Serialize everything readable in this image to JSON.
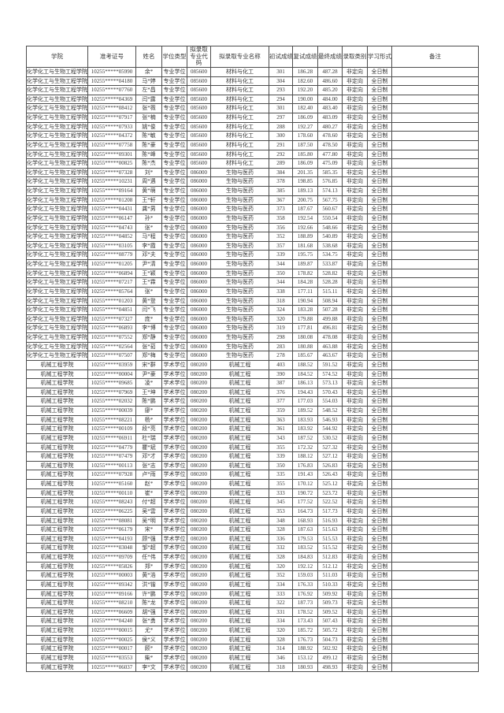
{
  "table": {
    "columns": [
      {
        "name": "college",
        "label": "学院"
      },
      {
        "name": "candidate-id",
        "label": "准考证号"
      },
      {
        "name": "name",
        "label": "姓名"
      },
      {
        "name": "degree-type",
        "label": "学位类型"
      },
      {
        "name": "major-code",
        "label": "拟录取专业代码"
      },
      {
        "name": "major-name",
        "label": "拟录取专业名称"
      },
      {
        "name": "initial-score",
        "label": "初试成绩"
      },
      {
        "name": "retest-score",
        "label": "复试成绩"
      },
      {
        "name": "final-score",
        "label": "最终成绩"
      },
      {
        "name": "admission-category",
        "label": "录取类别"
      },
      {
        "name": "study-form",
        "label": "学习形式"
      },
      {
        "name": "remark",
        "label": "备注"
      }
    ],
    "rows": [
      [
        "化学化工与生物工程学院",
        "10255*****05990",
        "余*",
        "专业学位",
        "085600",
        "材料与化工",
        "301",
        "186.28",
        "487.28",
        "非定向",
        "全日制",
        ""
      ],
      [
        "化学化工与生物工程学院",
        "10255*****04180",
        "马*婷",
        "专业学位",
        "085600",
        "材料与化工",
        "304",
        "182.60",
        "486.60",
        "非定向",
        "全日制",
        ""
      ],
      [
        "化学化工与生物工程学院",
        "10255*****07760",
        "左*昌",
        "专业学位",
        "085600",
        "材料与化工",
        "293",
        "192.20",
        "485.20",
        "非定向",
        "全日制",
        ""
      ],
      [
        "化学化工与生物工程学院",
        "10255*****04369",
        "闫*露",
        "专业学位",
        "085600",
        "材料与化工",
        "294",
        "190.00",
        "484.00",
        "非定向",
        "全日制",
        ""
      ],
      [
        "化学化工与生物工程学院",
        "10255*****08412",
        "张*薇",
        "专业学位",
        "085600",
        "材料与化工",
        "301",
        "182.40",
        "483.40",
        "非定向",
        "全日制",
        ""
      ],
      [
        "化学化工与生物工程学院",
        "10255*****07917",
        "张*楠",
        "专业学位",
        "085600",
        "材料与化工",
        "297",
        "186.09",
        "483.09",
        "非定向",
        "全日制",
        ""
      ],
      [
        "化学化工与生物工程学院",
        "10255*****07933",
        "姚*俊",
        "专业学位",
        "085600",
        "材料与化工",
        "288",
        "192.27",
        "480.27",
        "非定向",
        "全日制",
        ""
      ],
      [
        "化学化工与生物工程学院",
        "10255*****04372",
        "陈*敏",
        "专业学位",
        "085600",
        "材料与化工",
        "300",
        "178.60",
        "478.60",
        "非定向",
        "全日制",
        ""
      ],
      [
        "化学化工与生物工程学院",
        "10255*****07758",
        "陈*豪",
        "专业学位",
        "085600",
        "材料与化工",
        "291",
        "187.50",
        "478.50",
        "非定向",
        "全日制",
        ""
      ],
      [
        "化学化工与生物工程学院",
        "10255*****09301",
        "陈*峰",
        "专业学位",
        "085600",
        "材料与化工",
        "292",
        "185.80",
        "477.80",
        "非定向",
        "全日制",
        ""
      ],
      [
        "化学化工与生物工程学院",
        "10255*****00825",
        "陈*杰",
        "专业学位",
        "085600",
        "材料与化工",
        "289",
        "186.09",
        "475.09",
        "非定向",
        "全日制",
        ""
      ],
      [
        "化学化工与生物工程学院",
        "10255*****07328",
        "刘*",
        "专业学位",
        "086000",
        "生物与医药",
        "384",
        "201.35",
        "585.35",
        "非定向",
        "全日制",
        ""
      ],
      [
        "化学化工与生物工程学院",
        "10255*****10231",
        "周*遇",
        "专业学位",
        "086000",
        "生物与医药",
        "378",
        "198.85",
        "576.85",
        "非定向",
        "全日制",
        ""
      ],
      [
        "化学化工与生物工程学院",
        "10255*****09164",
        "黄*萌",
        "专业学位",
        "086000",
        "生物与医药",
        "385",
        "189.13",
        "574.13",
        "非定向",
        "全日制",
        ""
      ],
      [
        "化学化工与生物工程学院",
        "10255*****01208",
        "王*轩",
        "专业学位",
        "086000",
        "生物与医药",
        "367",
        "200.75",
        "567.75",
        "非定向",
        "全日制",
        ""
      ],
      [
        "化学化工与生物工程学院",
        "10255*****04431",
        "龚*男",
        "专业学位",
        "086000",
        "生物与医药",
        "373",
        "187.67",
        "560.67",
        "非定向",
        "全日制",
        ""
      ],
      [
        "化学化工与生物工程学院",
        "10255*****06147",
        "孙*",
        "专业学位",
        "086000",
        "生物与医药",
        "358",
        "192.54",
        "550.54",
        "非定向",
        "全日制",
        ""
      ],
      [
        "化学化工与生物工程学院",
        "10255*****04743",
        "张*",
        "专业学位",
        "086000",
        "生物与医药",
        "356",
        "192.66",
        "548.66",
        "非定向",
        "全日制",
        ""
      ],
      [
        "化学化工与生物工程学院",
        "10255*****04852",
        "马*程",
        "专业学位",
        "086000",
        "生物与医药",
        "352",
        "188.89",
        "540.89",
        "非定向",
        "全日制",
        ""
      ],
      [
        "化学化工与生物工程学院",
        "10255*****03105",
        "李*霞",
        "专业学位",
        "086000",
        "生物与医药",
        "357",
        "181.68",
        "538.68",
        "非定向",
        "全日制",
        ""
      ],
      [
        "化学化工与生物工程学院",
        "10255*****08779",
        "邓*夫",
        "专业学位",
        "086000",
        "生物与医药",
        "339",
        "195.75",
        "534.75",
        "非定向",
        "全日制",
        ""
      ],
      [
        "化学化工与生物工程学院",
        "10255*****01205",
        "尹*清",
        "专业学位",
        "086000",
        "生物与医药",
        "344",
        "189.87",
        "533.87",
        "非定向",
        "全日制",
        ""
      ],
      [
        "化学化工与生物工程学院",
        "10255*****06894",
        "王*颖",
        "专业学位",
        "086000",
        "生物与医药",
        "350",
        "178.82",
        "528.82",
        "非定向",
        "全日制",
        ""
      ],
      [
        "化学化工与生物工程学院",
        "10255*****07217",
        "王*霖",
        "专业学位",
        "086000",
        "生物与医药",
        "344",
        "184.28",
        "528.28",
        "非定向",
        "全日制",
        ""
      ],
      [
        "化学化工与生物工程学院",
        "10255*****05764",
        "张*",
        "专业学位",
        "086000",
        "生物与医药",
        "338",
        "177.11",
        "515.11",
        "非定向",
        "全日制",
        ""
      ],
      [
        "化学化工与生物工程学院",
        "10255*****01203",
        "黄*登",
        "专业学位",
        "086000",
        "生物与医药",
        "318",
        "190.94",
        "508.94",
        "非定向",
        "全日制",
        ""
      ],
      [
        "化学化工与生物工程学院",
        "10255*****04851",
        "闫*飞",
        "专业学位",
        "086000",
        "生物与医药",
        "324",
        "183.28",
        "507.28",
        "非定向",
        "全日制",
        ""
      ],
      [
        "化学化工与生物工程学院",
        "10255*****07327",
        "庞*",
        "专业学位",
        "086000",
        "生物与医药",
        "320",
        "179.88",
        "499.88",
        "非定向",
        "全日制",
        ""
      ],
      [
        "化学化工与生物工程学院",
        "10255*****06893",
        "李*博",
        "专业学位",
        "086000",
        "生物与医药",
        "319",
        "177.81",
        "496.81",
        "非定向",
        "全日制",
        ""
      ],
      [
        "化学化工与生物工程学院",
        "10255*****07552",
        "郑*静",
        "专业学位",
        "086000",
        "生物与医药",
        "298",
        "180.08",
        "478.08",
        "非定向",
        "全日制",
        ""
      ],
      [
        "化学化工与生物工程学院",
        "10255*****02564",
        "张*茹",
        "专业学位",
        "086000",
        "生物与医药",
        "283",
        "180.88",
        "463.88",
        "非定向",
        "全日制",
        ""
      ],
      [
        "化学化工与生物工程学院",
        "10255*****07507",
        "郑*梅",
        "专业学位",
        "086000",
        "生物与医药",
        "278",
        "185.67",
        "463.67",
        "非定向",
        "全日制",
        ""
      ],
      [
        "机械工程学院",
        "10255*****03959",
        "宋*群",
        "学术学位",
        "080200",
        "机械工程",
        "403",
        "188.52",
        "591.52",
        "非定向",
        "全日制",
        ""
      ],
      [
        "机械工程学院",
        "10255*****00004",
        "尹*豪",
        "学术学位",
        "080200",
        "机械工程",
        "390",
        "184.52",
        "574.52",
        "非定向",
        "全日制",
        ""
      ],
      [
        "机械工程学院",
        "10255*****09685",
        "凌*",
        "学术学位",
        "080200",
        "机械工程",
        "387",
        "186.13",
        "573.13",
        "非定向",
        "全日制",
        ""
      ],
      [
        "机械工程学院",
        "10255*****07969",
        "王*坤",
        "学术学位",
        "080200",
        "机械工程",
        "376",
        "194.43",
        "570.43",
        "非定向",
        "全日制",
        ""
      ],
      [
        "机械工程学院",
        "10255*****02032",
        "陈*鹏",
        "学术学位",
        "080200",
        "机械工程",
        "377",
        "177.03",
        "554.03",
        "非定向",
        "全日制",
        ""
      ],
      [
        "机械工程学院",
        "10255*****00039",
        "廖*",
        "学术学位",
        "080200",
        "机械工程",
        "359",
        "189.52",
        "548.52",
        "非定向",
        "全日制",
        ""
      ],
      [
        "机械工程学院",
        "10255*****08221",
        "杨*",
        "学术学位",
        "080200",
        "机械工程",
        "363",
        "183.93",
        "546.93",
        "非定向",
        "全日制",
        ""
      ],
      [
        "机械工程学院",
        "10255*****00109",
        "段*亮",
        "学术学位",
        "080200",
        "机械工程",
        "361",
        "183.92",
        "544.92",
        "非定向",
        "全日制",
        ""
      ],
      [
        "机械工程学院",
        "10255*****06911",
        "杜*瑞",
        "学术学位",
        "080200",
        "机械工程",
        "343",
        "187.52",
        "530.52",
        "非定向",
        "全日制",
        ""
      ],
      [
        "机械工程学院",
        "10255*****04779",
        "瞿*斌",
        "学术学位",
        "080200",
        "机械工程",
        "355",
        "172.32",
        "527.32",
        "非定向",
        "全日制",
        ""
      ],
      [
        "机械工程学院",
        "10255*****07479",
        "邓*才",
        "学术学位",
        "080200",
        "机械工程",
        "339",
        "188.12",
        "527.12",
        "非定向",
        "全日制",
        ""
      ],
      [
        "机械工程学院",
        "10255*****00113",
        "张*志",
        "学术学位",
        "080200",
        "机械工程",
        "350",
        "176.83",
        "526.83",
        "非定向",
        "全日制",
        ""
      ],
      [
        "机械工程学院",
        "10255*****07928",
        "卢*雨",
        "学术学位",
        "080200",
        "机械工程",
        "335",
        "191.43",
        "526.43",
        "非定向",
        "全日制",
        ""
      ],
      [
        "机械工程学院",
        "10255*****05160",
        "赵*",
        "学术学位",
        "080200",
        "机械工程",
        "355",
        "170.12",
        "525.12",
        "非定向",
        "全日制",
        ""
      ],
      [
        "机械工程学院",
        "10255*****00110",
        "崔*",
        "学术学位",
        "080200",
        "机械工程",
        "333",
        "190.72",
        "523.72",
        "非定向",
        "全日制",
        ""
      ],
      [
        "机械工程学院",
        "10255*****08243",
        "付*超",
        "学术学位",
        "080200",
        "机械工程",
        "345",
        "177.52",
        "522.52",
        "非定向",
        "全日制",
        ""
      ],
      [
        "机械工程学院",
        "10255*****06225",
        "吴*雲",
        "学术学位",
        "080200",
        "机械工程",
        "353",
        "164.73",
        "517.73",
        "非定向",
        "全日制",
        ""
      ],
      [
        "机械工程学院",
        "10255*****08081",
        "吴*明",
        "学术学位",
        "080200",
        "机械工程",
        "348",
        "168.93",
        "516.93",
        "非定向",
        "全日制",
        ""
      ],
      [
        "机械工程学院",
        "10255*****06179",
        "宋*",
        "学术学位",
        "080200",
        "机械工程",
        "328",
        "187.63",
        "515.63",
        "非定向",
        "全日制",
        ""
      ],
      [
        "机械工程学院",
        "10255*****04193",
        "顾*强",
        "学术学位",
        "080200",
        "机械工程",
        "336",
        "179.53",
        "515.53",
        "非定向",
        "全日制",
        ""
      ],
      [
        "机械工程学院",
        "10255*****03048",
        "邹*超",
        "学术学位",
        "080200",
        "机械工程",
        "332",
        "183.52",
        "515.52",
        "非定向",
        "全日制",
        ""
      ],
      [
        "机械工程学院",
        "10255*****09709",
        "任*伟",
        "学术学位",
        "080200",
        "机械工程",
        "328",
        "184.83",
        "512.83",
        "非定向",
        "全日制",
        ""
      ],
      [
        "机械工程学院",
        "10255*****05826",
        "郑*",
        "学术学位",
        "080200",
        "机械工程",
        "320",
        "192.12",
        "512.12",
        "非定向",
        "全日制",
        ""
      ],
      [
        "机械工程学院",
        "10255*****00003",
        "黄*浩",
        "学术学位",
        "080200",
        "机械工程",
        "352",
        "159.03",
        "511.03",
        "非定向",
        "全日制",
        ""
      ],
      [
        "机械工程学院",
        "10255*****09342",
        "洪*锴",
        "学术学位",
        "080200",
        "机械工程",
        "334",
        "176.33",
        "510.33",
        "非定向",
        "全日制",
        ""
      ],
      [
        "机械工程学院",
        "10255*****09166",
        "许*鹏",
        "学术学位",
        "080200",
        "机械工程",
        "333",
        "176.92",
        "509.92",
        "非定向",
        "全日制",
        ""
      ],
      [
        "机械工程学院",
        "10255*****08210",
        "陈*龙",
        "学术学位",
        "080200",
        "机械工程",
        "322",
        "187.73",
        "509.73",
        "非定向",
        "全日制",
        ""
      ],
      [
        "机械工程学院",
        "10255*****06609",
        "胡*强",
        "学术学位",
        "080200",
        "机械工程",
        "331",
        "178.52",
        "509.52",
        "非定向",
        "全日制",
        ""
      ],
      [
        "机械工程学院",
        "10255*****04240",
        "张*勇",
        "学术学位",
        "080200",
        "机械工程",
        "334",
        "173.43",
        "507.43",
        "非定向",
        "全日制",
        ""
      ],
      [
        "机械工程学院",
        "10255*****00015",
        "尤*",
        "学术学位",
        "080200",
        "机械工程",
        "320",
        "185.72",
        "505.72",
        "非定向",
        "全日制",
        ""
      ],
      [
        "机械工程学院",
        "10255*****00025",
        "侯*义",
        "学术学位",
        "080200",
        "机械工程",
        "328",
        "176.73",
        "504.73",
        "非定向",
        "全日制",
        ""
      ],
      [
        "机械工程学院",
        "10255*****00017",
        "顾*",
        "学术学位",
        "080200",
        "机械工程",
        "314",
        "188.92",
        "502.92",
        "非定向",
        "全日制",
        ""
      ],
      [
        "机械工程学院",
        "10255*****03553",
        "柴*",
        "学术学位",
        "080200",
        "机械工程",
        "346",
        "153.12",
        "499.12",
        "非定向",
        "全日制",
        ""
      ],
      [
        "机械工程学院",
        "10255*****06037",
        "李*文",
        "学术学位",
        "080200",
        "机械工程",
        "318",
        "180.93",
        "498.93",
        "非定向",
        "全日制",
        ""
      ]
    ]
  }
}
